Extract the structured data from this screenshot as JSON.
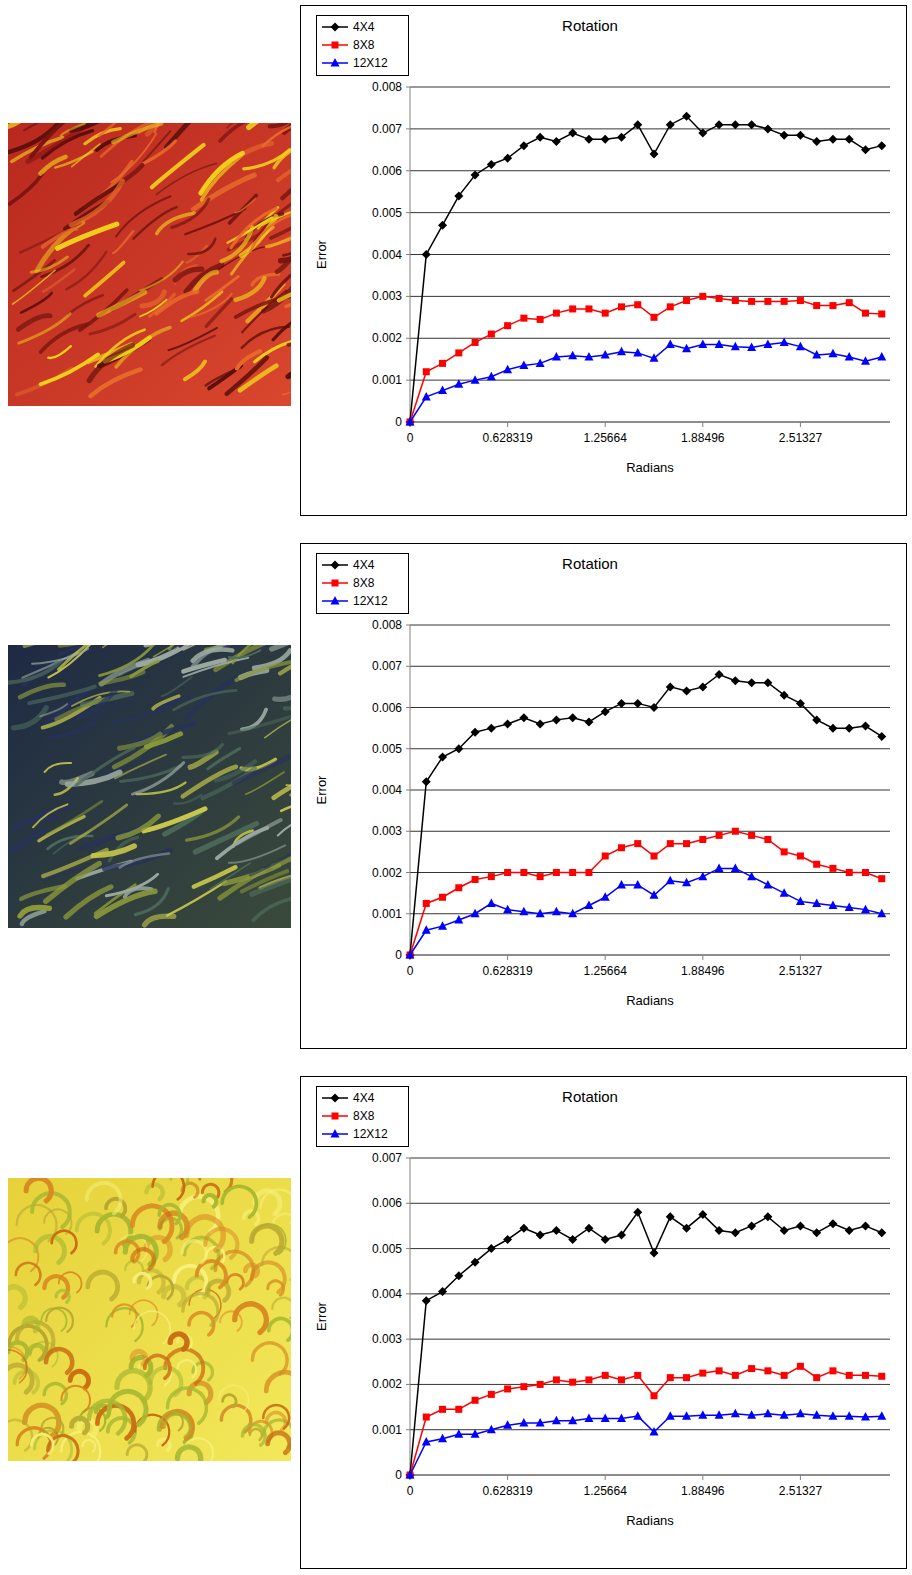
{
  "chart_data": [
    {
      "type": "line",
      "title": "Rotation",
      "x_label": "Radians",
      "y_label": "Error",
      "x": [
        0,
        0.10472,
        0.20944,
        0.314159,
        0.418879,
        0.523599,
        0.628319,
        0.733038,
        0.837758,
        0.942478,
        1.047198,
        1.151917,
        1.256637,
        1.361357,
        1.466077,
        1.570796,
        1.675516,
        1.780236,
        1.884956,
        1.989675,
        2.094395,
        2.199115,
        2.303835,
        2.408554,
        2.513274,
        2.617994,
        2.722714,
        2.827433,
        2.932153,
        3.036873
      ],
      "series": [
        {
          "name": "4X4",
          "color": "#000000",
          "marker": "diamond",
          "values": [
            0,
            0.004,
            0.0047,
            0.0054,
            0.0059,
            0.00615,
            0.0063,
            0.0066,
            0.0068,
            0.0067,
            0.0069,
            0.00675,
            0.00675,
            0.0068,
            0.0071,
            0.0064,
            0.0071,
            0.0073,
            0.0069,
            0.0071,
            0.0071,
            0.0071,
            0.007,
            0.00685,
            0.00685,
            0.0067,
            0.00675,
            0.00675,
            0.0065,
            0.0066
          ]
        },
        {
          "name": "8X8",
          "color": "#ff0000",
          "marker": "square",
          "values": [
            0,
            0.0012,
            0.0014,
            0.00165,
            0.0019,
            0.0021,
            0.0023,
            0.00248,
            0.00245,
            0.0026,
            0.0027,
            0.0027,
            0.0026,
            0.00275,
            0.0028,
            0.0025,
            0.00275,
            0.0029,
            0.003,
            0.00295,
            0.0029,
            0.00288,
            0.00288,
            0.00288,
            0.0029,
            0.00278,
            0.00278,
            0.00285,
            0.0026,
            0.00258
          ]
        },
        {
          "name": "12X12",
          "color": "#0000ff",
          "marker": "triangle",
          "values": [
            0,
            0.0006,
            0.00075,
            0.0009,
            0.001,
            0.00108,
            0.00125,
            0.00135,
            0.0014,
            0.00155,
            0.00158,
            0.00155,
            0.0016,
            0.00168,
            0.00165,
            0.00152,
            0.00185,
            0.00175,
            0.00185,
            0.00185,
            0.0018,
            0.00178,
            0.00185,
            0.0019,
            0.0018,
            0.0016,
            0.00163,
            0.00155,
            0.00145,
            0.00155
          ]
        }
      ],
      "xlim": [
        0,
        3.09
      ],
      "xticks": [
        0,
        0.628319,
        1.25664,
        1.88496,
        2.51327
      ],
      "ylim": [
        0,
        0.008
      ],
      "yticks": [
        0,
        0.001,
        0.002,
        0.003,
        0.004,
        0.005,
        0.006,
        0.007,
        0.008
      ],
      "grid": true,
      "legend": "top-left"
    },
    {
      "type": "line",
      "title": "Rotation",
      "x_label": "Radians",
      "y_label": "Error",
      "x": [
        0,
        0.10472,
        0.20944,
        0.314159,
        0.418879,
        0.523599,
        0.628319,
        0.733038,
        0.837758,
        0.942478,
        1.047198,
        1.151917,
        1.256637,
        1.361357,
        1.466077,
        1.570796,
        1.675516,
        1.780236,
        1.884956,
        1.989675,
        2.094395,
        2.199115,
        2.303835,
        2.408554,
        2.513274,
        2.617994,
        2.722714,
        2.827433,
        2.932153,
        3.036873
      ],
      "series": [
        {
          "name": "4X4",
          "color": "#000000",
          "marker": "diamond",
          "values": [
            0,
            0.0042,
            0.0048,
            0.005,
            0.0054,
            0.0055,
            0.0056,
            0.00575,
            0.0056,
            0.0057,
            0.00575,
            0.00565,
            0.0059,
            0.0061,
            0.0061,
            0.006,
            0.0065,
            0.0064,
            0.0065,
            0.0068,
            0.00665,
            0.0066,
            0.0066,
            0.0063,
            0.0061,
            0.0057,
            0.0055,
            0.0055,
            0.00555,
            0.0053
          ]
        },
        {
          "name": "8X8",
          "color": "#ff0000",
          "marker": "square",
          "values": [
            0,
            0.00125,
            0.0014,
            0.00163,
            0.00183,
            0.0019,
            0.002,
            0.002,
            0.0019,
            0.002,
            0.002,
            0.002,
            0.0024,
            0.0026,
            0.0027,
            0.0024,
            0.0027,
            0.0027,
            0.0028,
            0.0029,
            0.003,
            0.0029,
            0.0028,
            0.0025,
            0.0024,
            0.0022,
            0.0021,
            0.002,
            0.002,
            0.00185
          ]
        },
        {
          "name": "12X12",
          "color": "#0000ff",
          "marker": "triangle",
          "values": [
            0,
            0.0006,
            0.0007,
            0.00085,
            0.001,
            0.00125,
            0.0011,
            0.00105,
            0.001,
            0.00105,
            0.001,
            0.0012,
            0.0014,
            0.0017,
            0.0017,
            0.00145,
            0.0018,
            0.00175,
            0.0019,
            0.0021,
            0.0021,
            0.0019,
            0.0017,
            0.0015,
            0.0013,
            0.00125,
            0.0012,
            0.00115,
            0.0011,
            0.001
          ]
        }
      ],
      "xlim": [
        0,
        3.09
      ],
      "xticks": [
        0,
        0.628319,
        1.25664,
        1.88496,
        2.51327
      ],
      "ylim": [
        0,
        0.008
      ],
      "yticks": [
        0,
        0.001,
        0.002,
        0.003,
        0.004,
        0.005,
        0.006,
        0.007,
        0.008
      ],
      "grid": true,
      "legend": "top-left"
    },
    {
      "type": "line",
      "title": "Rotation",
      "x_label": "Radians",
      "y_label": "Error",
      "x": [
        0,
        0.10472,
        0.20944,
        0.314159,
        0.418879,
        0.523599,
        0.628319,
        0.733038,
        0.837758,
        0.942478,
        1.047198,
        1.151917,
        1.256637,
        1.361357,
        1.466077,
        1.570796,
        1.675516,
        1.780236,
        1.884956,
        1.989675,
        2.094395,
        2.199115,
        2.303835,
        2.408554,
        2.513274,
        2.617994,
        2.722714,
        2.827433,
        2.932153,
        3.036873
      ],
      "series": [
        {
          "name": "4X4",
          "color": "#000000",
          "marker": "diamond",
          "values": [
            0,
            0.00385,
            0.00405,
            0.0044,
            0.0047,
            0.005,
            0.0052,
            0.00545,
            0.0053,
            0.0054,
            0.0052,
            0.00545,
            0.0052,
            0.0053,
            0.0058,
            0.0049,
            0.0057,
            0.00545,
            0.00575,
            0.0054,
            0.00535,
            0.0055,
            0.0057,
            0.0054,
            0.0055,
            0.00535,
            0.00555,
            0.0054,
            0.0055,
            0.00535
          ]
        },
        {
          "name": "8X8",
          "color": "#ff0000",
          "marker": "square",
          "values": [
            0,
            0.00128,
            0.00145,
            0.00145,
            0.00165,
            0.00178,
            0.0019,
            0.00195,
            0.002,
            0.0021,
            0.00205,
            0.0021,
            0.0022,
            0.0021,
            0.0022,
            0.00175,
            0.00215,
            0.00215,
            0.00225,
            0.0023,
            0.0022,
            0.00235,
            0.0023,
            0.0022,
            0.0024,
            0.00215,
            0.0023,
            0.0022,
            0.0022,
            0.00218
          ]
        },
        {
          "name": "12X12",
          "color": "#0000ff",
          "marker": "triangle",
          "values": [
            0,
            0.00073,
            0.0008,
            0.0009,
            0.0009,
            0.001,
            0.0011,
            0.00115,
            0.00115,
            0.0012,
            0.0012,
            0.00125,
            0.00125,
            0.00125,
            0.0013,
            0.00095,
            0.0013,
            0.0013,
            0.00132,
            0.00132,
            0.00135,
            0.00132,
            0.00135,
            0.00132,
            0.00135,
            0.00132,
            0.0013,
            0.0013,
            0.00128,
            0.0013
          ]
        }
      ],
      "xlim": [
        0,
        3.09
      ],
      "xticks": [
        0,
        0.628319,
        1.25664,
        1.88496,
        2.51327
      ],
      "ylim": [
        0,
        0.007
      ],
      "yticks": [
        0,
        0.001,
        0.002,
        0.003,
        0.004,
        0.005,
        0.006,
        0.007
      ],
      "grid": true,
      "legend": "top-left"
    }
  ]
}
